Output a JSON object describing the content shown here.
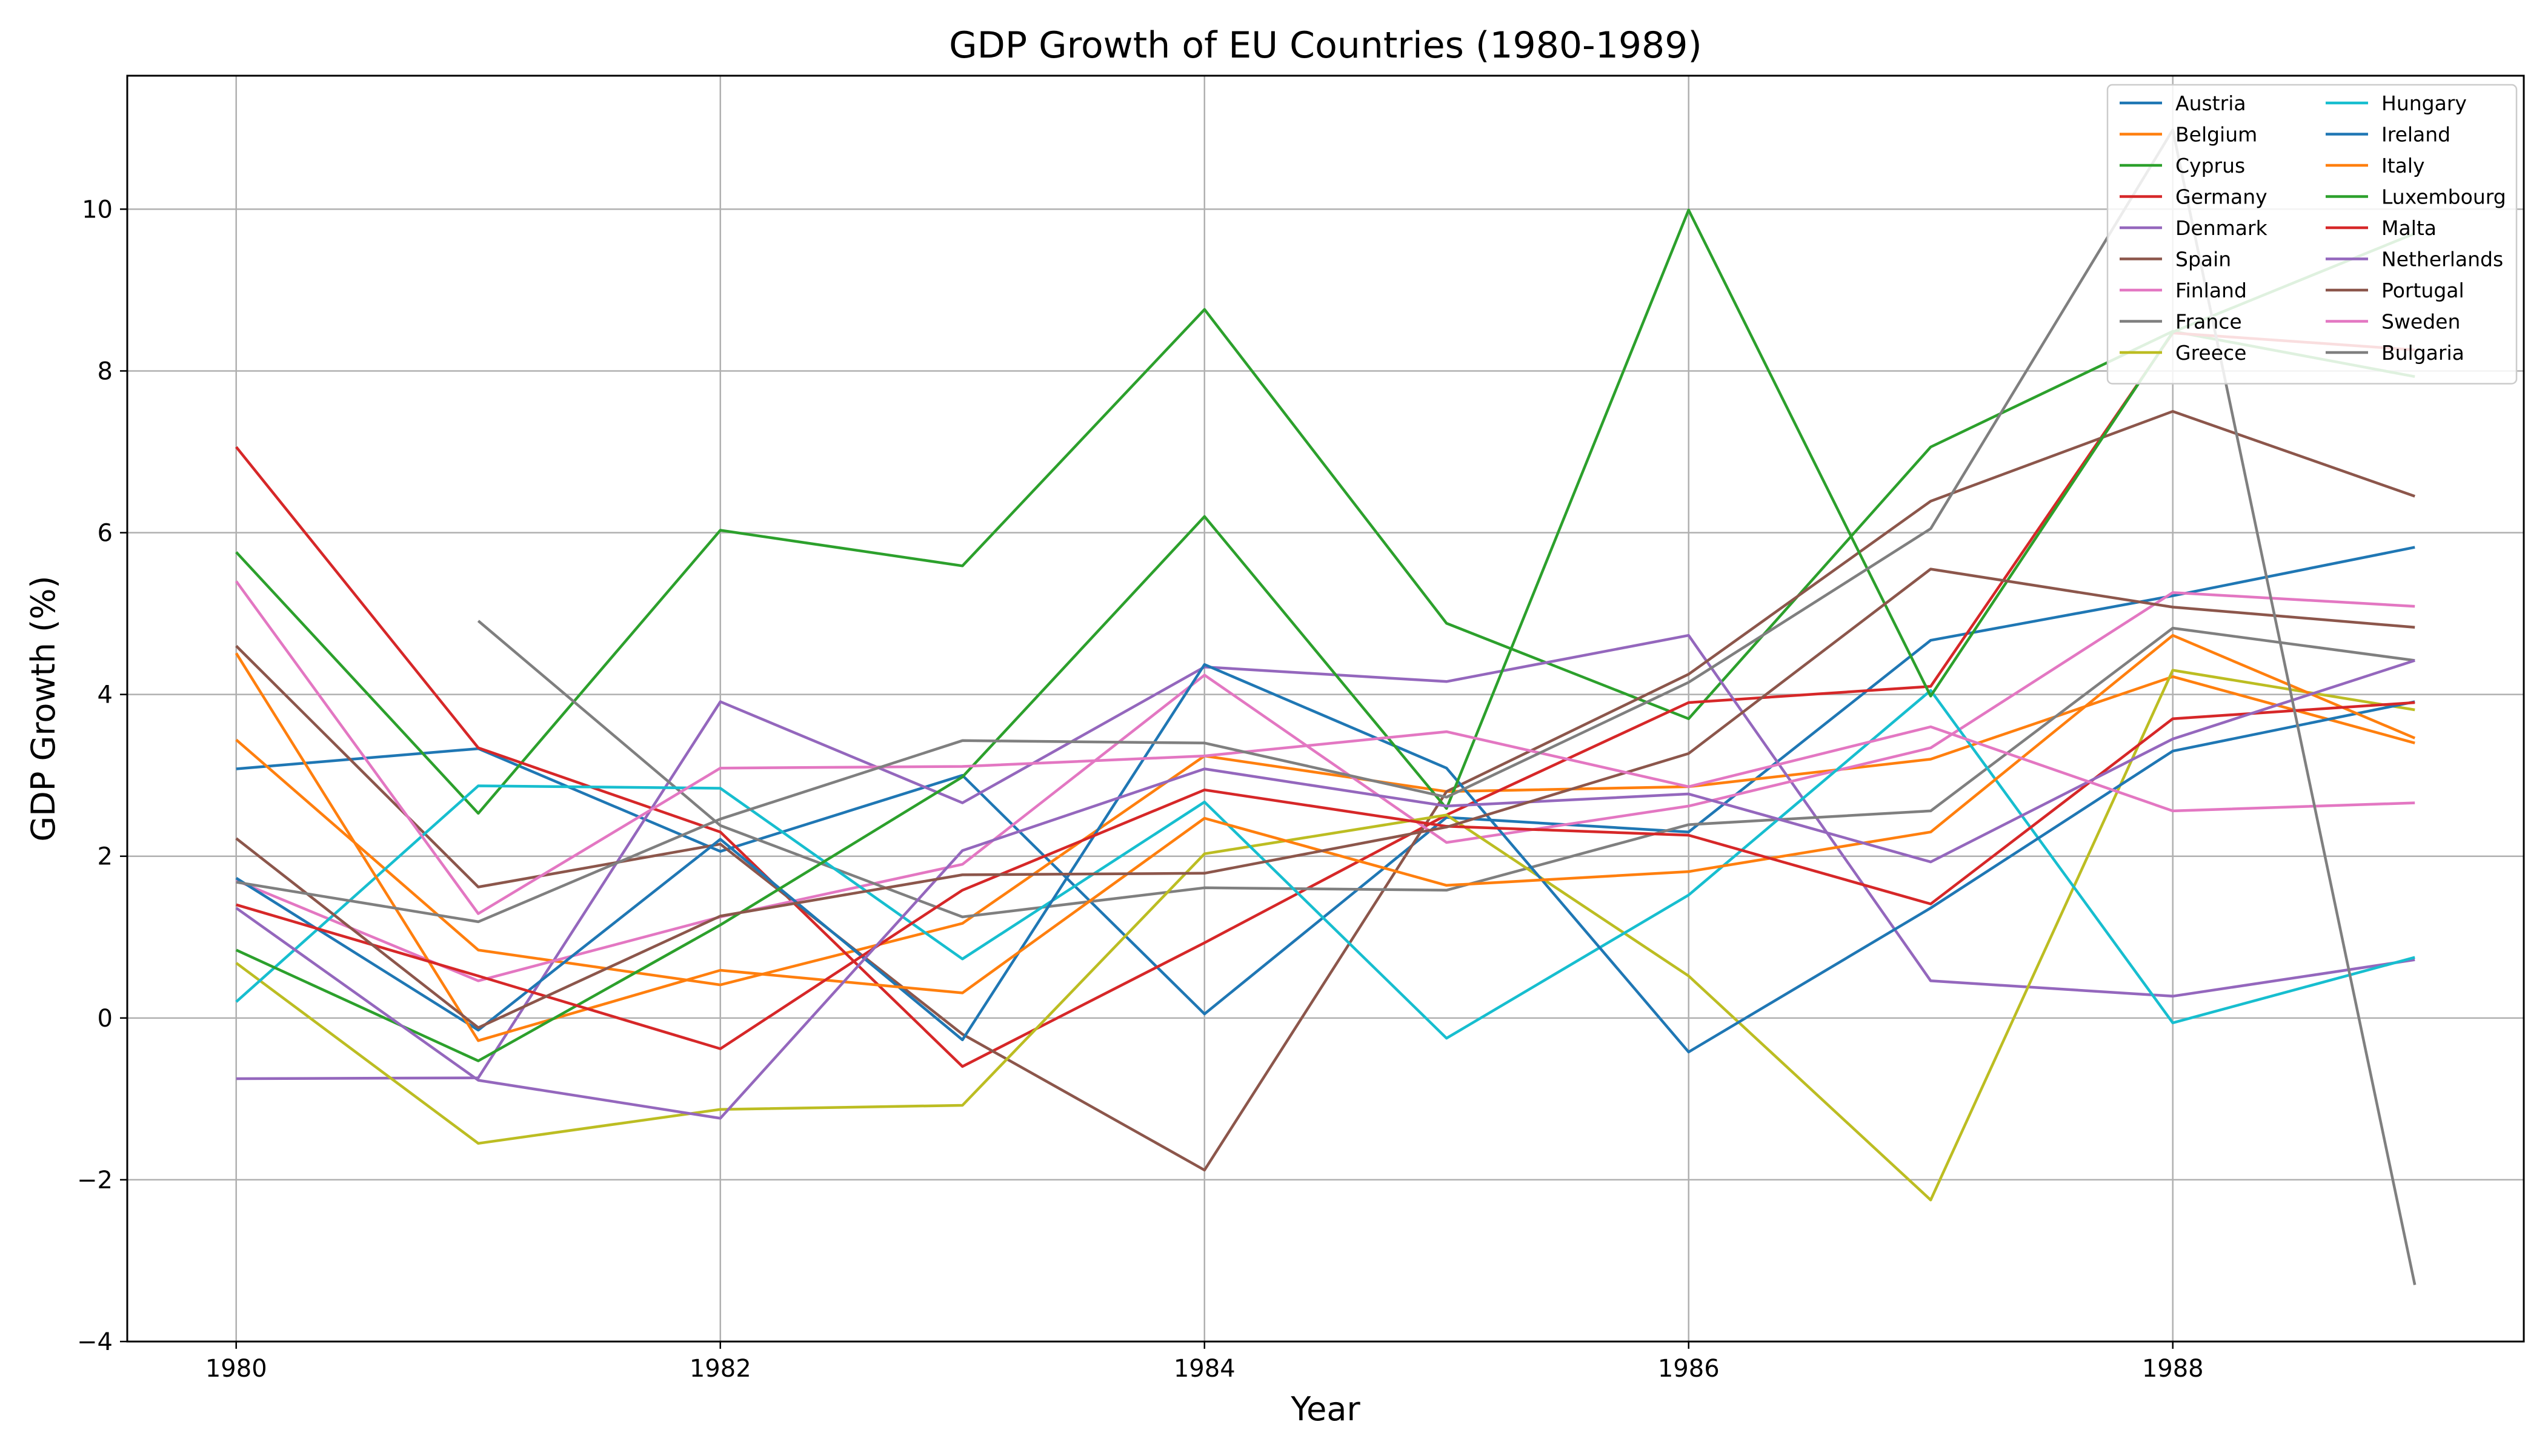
{
  "chart_data": {
    "type": "line",
    "title": "GDP Growth of EU Countries (1980-1989)",
    "xlabel": "Year",
    "ylabel": "GDP Growth (%)",
    "xlim": [
      1979.55,
      1989.45
    ],
    "ylim": [
      -4,
      11.65
    ],
    "xticks": [
      1980,
      1982,
      1984,
      1986,
      1988
    ],
    "yticks": [
      -4,
      -2,
      0,
      2,
      4,
      6,
      8,
      10
    ],
    "grid": true,
    "legend_position": "top-right",
    "legend_columns": 2,
    "x": [
      1980,
      1981,
      1982,
      1983,
      1984,
      1985,
      1986,
      1987,
      1988,
      1989
    ],
    "series": [
      {
        "name": "Austria",
        "color": "#1f77b4",
        "values": [
          3.08,
          3.33,
          2.06,
          3.0,
          0.05,
          2.48,
          2.3,
          4.67,
          5.22,
          5.82
        ]
      },
      {
        "name": "Belgium",
        "color": "#ff7f0e",
        "values": [
          3.44,
          0.84,
          0.41,
          1.17,
          3.24,
          2.8,
          2.86,
          3.2,
          4.22,
          3.4
        ]
      },
      {
        "name": "Cyprus",
        "color": "#2ca02c",
        "values": [
          5.76,
          2.53,
          6.03,
          5.59,
          8.76,
          4.88,
          3.7,
          7.06,
          8.49,
          7.93
        ]
      },
      {
        "name": "Germany",
        "color": "#d62728",
        "values": [
          7.06,
          3.34,
          2.3,
          -0.6,
          0.93,
          2.51,
          3.9,
          4.1,
          8.47,
          8.26
        ]
      },
      {
        "name": "Denmark",
        "color": "#9467bd",
        "values": [
          -0.75,
          -0.74,
          3.91,
          2.66,
          4.34,
          4.16,
          4.73,
          0.46,
          0.27,
          0.72
        ]
      },
      {
        "name": "Spain",
        "color": "#8c564b",
        "values": [
          4.6,
          1.62,
          2.15,
          -0.2,
          -1.88,
          2.8,
          4.25,
          6.39,
          7.5,
          6.45
        ]
      },
      {
        "name": "Finland",
        "color": "#e377c2",
        "values": [
          1.7,
          0.46,
          1.25,
          1.9,
          4.24,
          2.17,
          2.62,
          3.34,
          5.26,
          5.09
        ]
      },
      {
        "name": "France",
        "color": "#7f7f7f",
        "values": [
          null,
          4.91,
          2.38,
          1.25,
          1.61,
          1.58,
          2.39,
          2.56,
          4.82,
          4.42
        ]
      },
      {
        "name": "Greece",
        "color": "#bcbd22",
        "values": [
          0.68,
          -1.55,
          -1.13,
          -1.08,
          2.03,
          2.51,
          0.52,
          -2.25,
          4.3,
          3.81
        ]
      },
      {
        "name": "Hungary",
        "color": "#17becf",
        "values": [
          0.2,
          2.87,
          2.84,
          0.73,
          2.67,
          -0.25,
          1.52,
          4.05,
          -0.06,
          0.75
        ]
      },
      {
        "name": "Ireland",
        "color": "#1f77b4",
        "values": [
          1.73,
          -0.15,
          2.21,
          -0.27,
          4.37,
          3.09,
          -0.42,
          1.36,
          3.3,
          3.91
        ]
      },
      {
        "name": "Italy",
        "color": "#ff7f0e",
        "values": [
          4.51,
          -0.28,
          0.59,
          0.31,
          2.47,
          1.64,
          1.81,
          2.3,
          4.73,
          3.46
        ]
      },
      {
        "name": "Luxembourg",
        "color": "#2ca02c",
        "values": [
          0.84,
          -0.53,
          1.15,
          2.98,
          6.2,
          2.59,
          9.99,
          3.98,
          8.48,
          9.7
        ]
      },
      {
        "name": "Malta",
        "color": "#d62728",
        "values": [
          1.4,
          0.52,
          -0.38,
          1.58,
          2.82,
          2.37,
          2.26,
          1.41,
          3.7,
          3.9
        ]
      },
      {
        "name": "Netherlands",
        "color": "#9467bd",
        "values": [
          1.36,
          -0.77,
          -1.24,
          2.07,
          3.08,
          2.62,
          2.77,
          1.93,
          3.45,
          4.42
        ]
      },
      {
        "name": "Portugal",
        "color": "#8c564b",
        "values": [
          2.22,
          -0.12,
          1.26,
          1.77,
          1.79,
          2.36,
          3.27,
          5.55,
          5.08,
          4.83
        ]
      },
      {
        "name": "Sweden",
        "color": "#e377c2",
        "values": [
          5.4,
          1.29,
          3.09,
          3.11,
          3.24,
          3.54,
          2.86,
          3.6,
          2.56,
          2.66
        ]
      },
      {
        "name": "Bulgaria",
        "color": "#7f7f7f",
        "values": [
          1.68,
          1.19,
          2.46,
          3.43,
          3.4,
          2.73,
          4.15,
          6.05,
          10.98,
          -3.3
        ]
      }
    ]
  }
}
